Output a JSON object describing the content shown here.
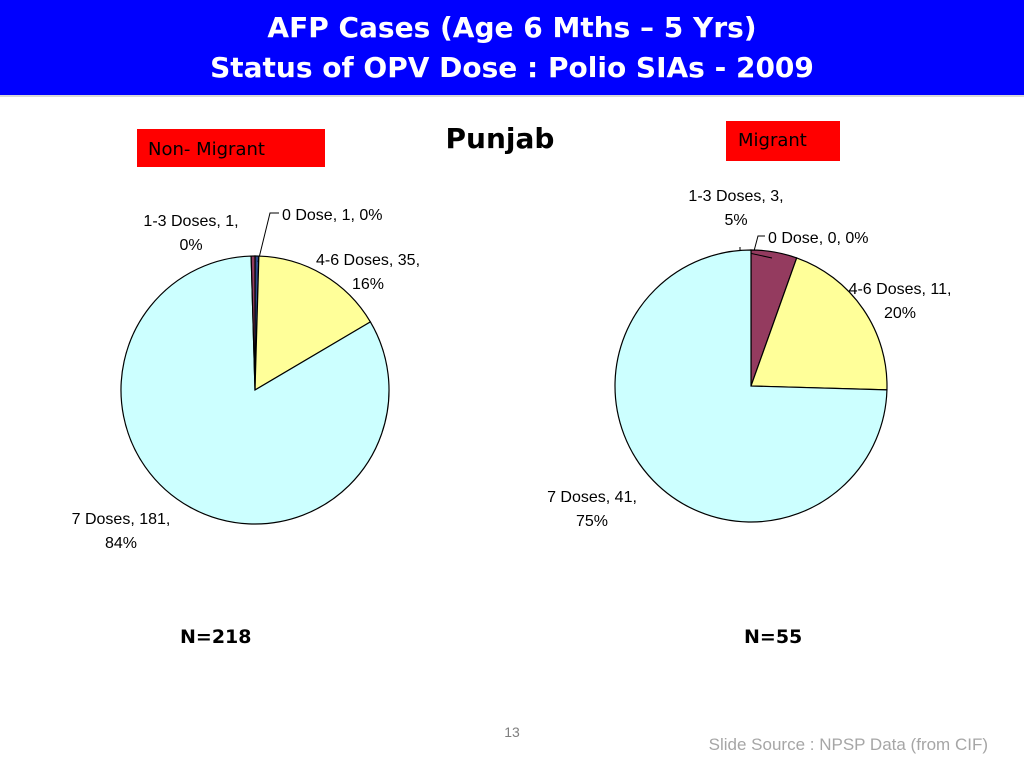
{
  "header": {
    "title_line1": "AFP Cases (Age 6 Mths – 5 Yrs)",
    "title_line2": "Status of OPV Dose : Polio SIAs - 2009"
  },
  "subtitle": "Punjab",
  "labels": {
    "non_migrant": "Non- Migrant",
    "migrant": "Migrant"
  },
  "colors": {
    "header_bg": "#0000ff",
    "label_bg": "#ff0000",
    "zero_dose": "#2e4a8c",
    "one_three_doses": "#943b5f",
    "four_six_doses": "#ffff99",
    "seven_doses": "#ccffff"
  },
  "chart_data": [
    {
      "type": "pie",
      "group": "Non- Migrant",
      "n_label": "N=218",
      "slices": [
        {
          "name": "0 Dose",
          "value": 1,
          "percent": 0,
          "label_line1": "0 Dose, 1, 0%",
          "label_line2": ""
        },
        {
          "name": "4-6 Doses",
          "value": 35,
          "percent": 16,
          "label_line1": "4-6 Doses, 35,",
          "label_line2": "16%"
        },
        {
          "name": "7 Doses",
          "value": 181,
          "percent": 84,
          "label_line1": "7 Doses, 181,",
          "label_line2": "84%"
        },
        {
          "name": "1-3 Doses",
          "value": 1,
          "percent": 0,
          "label_line1": "1-3 Doses, 1,",
          "label_line2": "0%"
        }
      ]
    },
    {
      "type": "pie",
      "group": "Migrant",
      "n_label": "N=55",
      "slices": [
        {
          "name": "0 Dose",
          "value": 0,
          "percent": 0,
          "label_line1": "0 Dose, 0, 0%",
          "label_line2": ""
        },
        {
          "name": "1-3 Doses",
          "value": 3,
          "percent": 5,
          "label_line1": "1-3 Doses, 3,",
          "label_line2": "5%"
        },
        {
          "name": "4-6 Doses",
          "value": 11,
          "percent": 20,
          "label_line1": "4-6 Doses, 11,",
          "label_line2": "20%"
        },
        {
          "name": "7 Doses",
          "value": 41,
          "percent": 75,
          "label_line1": "7 Doses, 41,",
          "label_line2": "75%"
        }
      ]
    }
  ],
  "footer": {
    "page_number": "13",
    "source": "Slide Source : NPSP Data (from CIF)"
  }
}
